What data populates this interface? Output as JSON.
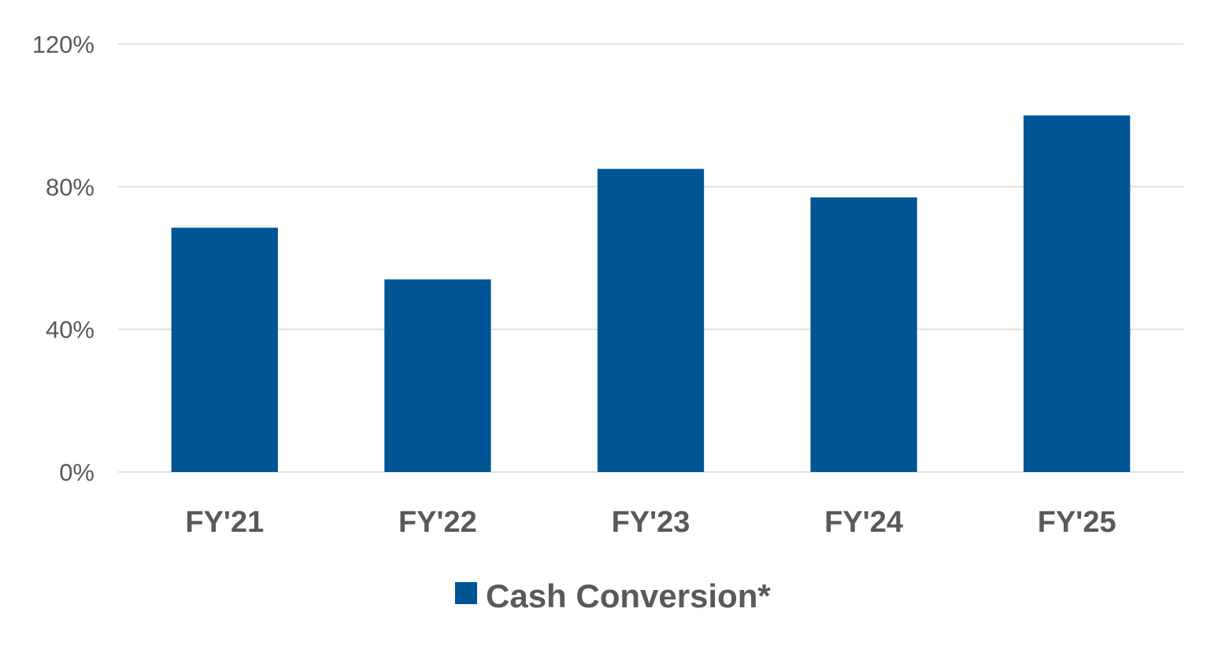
{
  "chart_data": {
    "type": "bar",
    "categories": [
      "FY'21",
      "FY'22",
      "FY'23",
      "FY'24",
      "FY'25"
    ],
    "series": [
      {
        "name": "Cash Conversion*",
        "values": [
          68.5,
          54,
          85,
          77,
          100
        ],
        "color": "#005595"
      }
    ],
    "yticks": [
      {
        "value": 0,
        "label": "0%"
      },
      {
        "value": 40,
        "label": "40%"
      },
      {
        "value": 80,
        "label": "80%"
      },
      {
        "value": 120,
        "label": "120%"
      }
    ],
    "ylim": [
      0,
      120
    ],
    "grid": true,
    "gridline_color": "#d9d9d9",
    "text_color": "#595959",
    "legend_position": "bottom-center"
  }
}
